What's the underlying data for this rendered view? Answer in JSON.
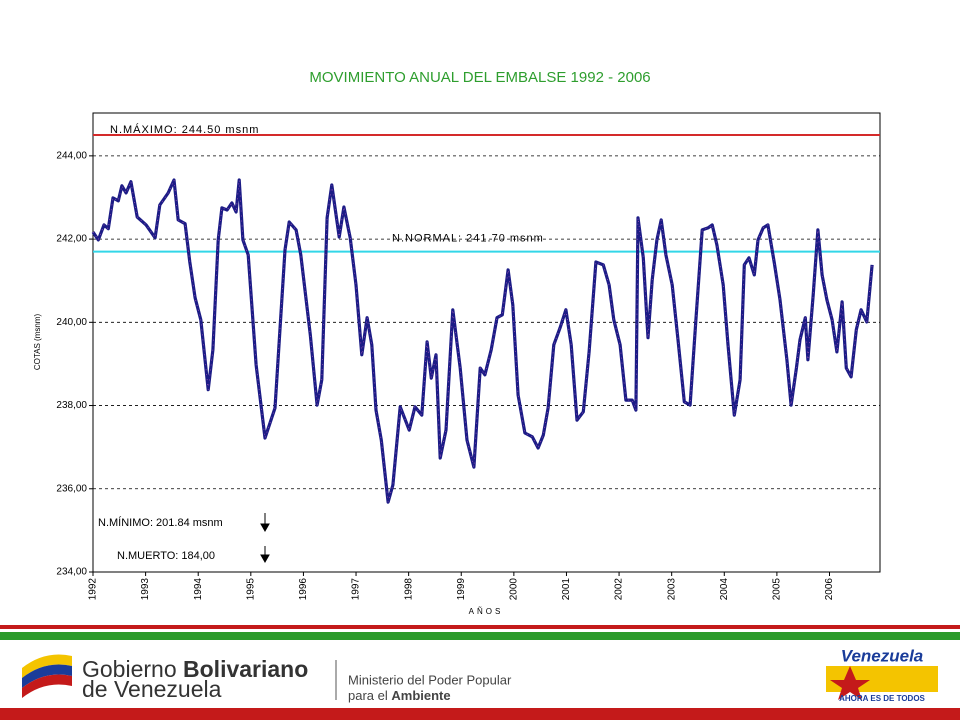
{
  "chart_data": {
    "type": "line",
    "title": "MOVIMIENTO ANUAL DEL EMBALSE 1992 - 2006",
    "x_label": "AÑOS",
    "y_label": "COTAS (msnm)",
    "xlim": [
      1992,
      2006.96
    ],
    "ylim": [
      234,
      245.03
    ],
    "xticks": [
      1992,
      1993,
      1994,
      1995,
      1996,
      1997,
      1998,
      1999,
      2000,
      2001,
      2002,
      2003,
      2004,
      2005,
      2006
    ],
    "yticks": [
      {
        "value": 234,
        "label": "234,00"
      },
      {
        "value": 236,
        "label": "236,00"
      },
      {
        "value": 238,
        "label": "238,00"
      },
      {
        "value": 240,
        "label": "240,00"
      },
      {
        "value": 242,
        "label": "242,00"
      },
      {
        "value": 244,
        "label": "244,00"
      }
    ],
    "grid": true,
    "series": [
      {
        "color": "#1c1c86",
        "x": [
          1992.0,
          1992.1,
          1992.21,
          1992.29,
          1992.38,
          1992.48,
          1992.55,
          1992.63,
          1992.72,
          1992.84,
          1993.01,
          1993.18,
          1993.27,
          1993.43,
          1993.54,
          1993.62,
          1993.75,
          1993.84,
          1993.94,
          1994.05,
          1994.19,
          1994.28,
          1994.38,
          1994.45,
          1994.55,
          1994.64,
          1994.72,
          1994.78,
          1994.85,
          1994.95,
          1995.1,
          1995.27,
          1995.46,
          1995.65,
          1995.73,
          1995.86,
          1995.95,
          1996.13,
          1996.26,
          1996.35,
          1996.45,
          1996.54,
          1996.68,
          1996.77,
          1996.89,
          1997.0,
          1997.11,
          1997.21,
          1997.3,
          1997.38,
          1997.48,
          1997.61,
          1997.7,
          1997.84,
          1998.01,
          1998.12,
          1998.25,
          1998.35,
          1998.43,
          1998.52,
          1998.6,
          1998.71,
          1998.84,
          1998.98,
          1999.11,
          1999.24,
          1999.36,
          1999.45,
          1999.57,
          1999.68,
          1999.78,
          1999.89,
          1999.98,
          2000.08,
          2000.21,
          2000.35,
          2000.46,
          2000.56,
          2000.65,
          2000.76,
          2000.88,
          2000.99,
          2001.09,
          2001.2,
          2001.32,
          2001.43,
          2001.56,
          2001.7,
          2001.81,
          2001.9,
          2002.02,
          2002.13,
          2002.25,
          2002.32,
          2002.36,
          2002.46,
          2002.55,
          2002.63,
          2002.72,
          2002.8,
          2002.89,
          2003.01,
          2003.12,
          2003.24,
          2003.35,
          2003.46,
          2003.58,
          2003.69,
          2003.77,
          2003.86,
          2003.98,
          2004.07,
          2004.19,
          2004.3,
          2004.38,
          2004.47,
          2004.57,
          2004.64,
          2004.74,
          2004.83,
          2004.95,
          2005.06,
          2005.19,
          2005.27,
          2005.37,
          2005.44,
          2005.54,
          2005.59,
          2005.69,
          2005.78,
          2005.86,
          2005.95,
          2006.05,
          2006.14,
          2006.24,
          2006.32,
          2006.41,
          2006.51,
          2006.6,
          2006.71,
          2006.81
        ],
        "values": [
          242.17,
          241.98,
          242.34,
          242.25,
          242.99,
          242.92,
          243.28,
          243.11,
          243.38,
          242.53,
          242.34,
          242.03,
          242.82,
          243.11,
          243.42,
          242.46,
          242.37,
          241.45,
          240.59,
          240.06,
          238.38,
          239.34,
          241.98,
          242.75,
          242.7,
          242.87,
          242.65,
          243.42,
          241.98,
          241.62,
          238.98,
          237.22,
          237.94,
          241.74,
          242.41,
          242.22,
          241.62,
          239.7,
          238.01,
          238.62,
          242.51,
          243.3,
          242.05,
          242.77,
          242.03,
          240.9,
          239.22,
          240.11,
          239.46,
          237.89,
          237.17,
          235.68,
          236.09,
          237.97,
          237.41,
          237.97,
          237.77,
          239.53,
          238.66,
          239.22,
          236.74,
          237.41,
          240.3,
          238.9,
          237.17,
          236.52,
          238.9,
          238.74,
          239.34,
          240.11,
          240.18,
          241.26,
          240.42,
          238.25,
          237.34,
          237.25,
          236.98,
          237.29,
          237.94,
          239.46,
          239.87,
          240.3,
          239.46,
          237.65,
          237.85,
          239.29,
          241.45,
          241.38,
          240.9,
          240.06,
          239.46,
          238.13,
          238.13,
          237.89,
          242.51,
          241.55,
          239.63,
          241.02,
          241.98,
          242.46,
          241.62,
          240.9,
          239.58,
          238.09,
          238.01,
          240.06,
          242.22,
          242.27,
          242.34,
          241.86,
          240.9,
          239.46,
          237.77,
          238.62,
          241.38,
          241.55,
          241.14,
          241.98,
          242.27,
          242.34,
          241.43,
          240.54,
          239.1,
          238.01,
          238.9,
          239.58,
          240.11,
          239.1,
          240.66,
          242.22,
          241.14,
          240.54,
          240.06,
          239.29,
          240.49,
          238.9,
          238.69,
          239.82,
          240.3,
          240.01,
          241.38
        ]
      }
    ],
    "reference_lines": [
      {
        "label": "N.MÁXIMO: 244.50  msnm",
        "value": 244.5,
        "color": "#d42a2a"
      },
      {
        "label": "N.NORMAL: 241.70 msnm",
        "value": 241.7,
        "color": "#33d6e8"
      }
    ],
    "annotations": [
      "N.MÍNIMO: 201.84  msnm",
      "N.MUERTO: 184,00"
    ]
  },
  "footer": {
    "gov_1": "Gobierno",
    "gov_2": "Bolivariano",
    "gov_3": "de Venezuela",
    "ministry_1": "Ministerio del Poder Popular",
    "ministry_2": "para el",
    "ministry_3": "Ambiente",
    "slogan_1": "Venezuela",
    "slogan_2": "AHORA ES DE TODOS"
  }
}
